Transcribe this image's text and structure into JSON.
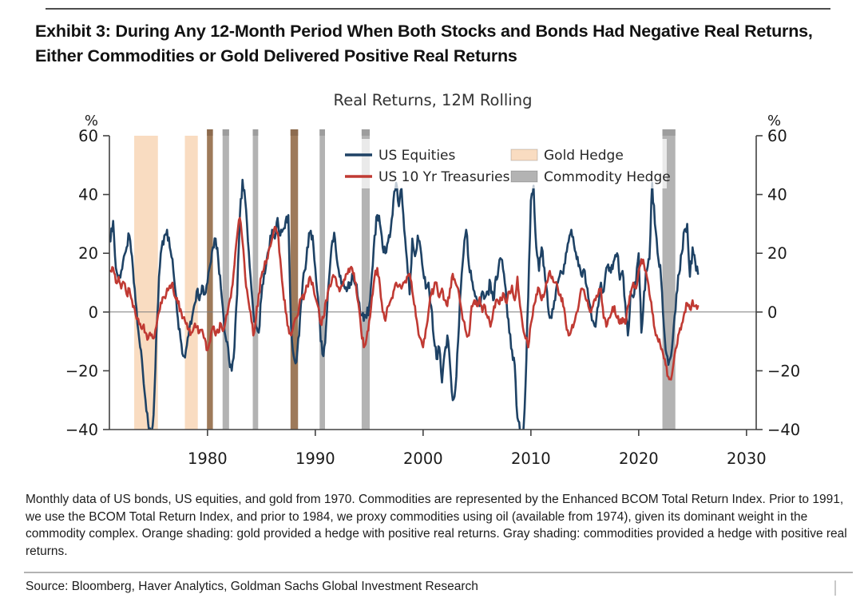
{
  "page": {
    "exhibit_title": "Exhibit 3: During Any 12-Month Period When Both Stocks and Bonds Had Negative Real Returns, Either Commodities or Gold Delivered Positive Real Returns",
    "footnote": "Monthly data of US bonds, US equities, and gold from 1970. Commodities are represented by the Enhanced BCOM Total Return Index. Prior to 1991, we use the BCOM Total Return Index, and prior to 1984, we proxy commodities using oil (available from 1974), given its dominant weight in the commodity complex. Orange shading: gold provided a hedge with positive real returns. Gray shading: commodities provided a hedge with positive real returns.",
    "source": "Source: Bloomberg, Haver Analytics, Goldman Sachs Global Investment Research"
  },
  "chart_data": {
    "type": "line",
    "title": "Real Returns, 12M Rolling",
    "y_axis": {
      "label": "%",
      "ticks": [
        60,
        40,
        20,
        0,
        -20,
        -40
      ],
      "range": [
        -40,
        60
      ],
      "mirrored_right": true,
      "grid": false,
      "zero_line": true
    },
    "x_axis": {
      "ticks": [
        1980,
        1990,
        2000,
        2010,
        2020,
        2030
      ],
      "range": [
        1970.9,
        2030.9
      ]
    },
    "legend": {
      "position": "upper center, two columns, inside plot",
      "items": [
        {
          "label": "US Equities",
          "swatch": "line",
          "color": "#1e4265"
        },
        {
          "label": "US 10 Yr Treasuries",
          "swatch": "line",
          "color": "#c03a33"
        },
        {
          "label": "Gold Hedge",
          "swatch": "patch",
          "color": "#f9dcc1"
        },
        {
          "label": "Commodity Hedge",
          "swatch": "patch",
          "color": "#b3b3b3"
        }
      ]
    },
    "bands": [
      {
        "name": "Gold Hedge",
        "color": "#f9dcc1",
        "cap_color": null,
        "ranges": [
          [
            1973.2,
            1975.4
          ],
          [
            1977.9,
            1979.1
          ]
        ]
      },
      {
        "name": "Gold + Commodity Hedge (overlap)",
        "color": "#9e7a5a",
        "cap_color": "#8d6b4e",
        "ranges": [
          [
            1979.95,
            1980.5
          ],
          [
            1987.7,
            1988.4
          ]
        ]
      },
      {
        "name": "Commodity Hedge",
        "color": "#b3b3b3",
        "cap_color": "#9d9d9d",
        "ranges": [
          [
            1981.4,
            1982.0
          ],
          [
            1984.2,
            1984.7
          ],
          [
            1990.4,
            1990.9
          ],
          [
            1994.3,
            1995.05
          ],
          [
            2022.2,
            2023.4
          ]
        ]
      }
    ],
    "series": [
      {
        "name": "US Equities",
        "color": "#1e4265",
        "x_start": 1971.0,
        "x_step": 0.25,
        "values": [
          24,
          31,
          15,
          11,
          14,
          19,
          22,
          26,
          19,
          8,
          -4,
          -12,
          -20,
          -30,
          -38,
          -43,
          -35,
          -8,
          12,
          22,
          26,
          28,
          22,
          18,
          8,
          -2,
          -9,
          -15,
          -13,
          -8,
          -4,
          2,
          7,
          4,
          9,
          6,
          10,
          16,
          22,
          25,
          18,
          8,
          -2,
          -10,
          -16,
          -20,
          -12,
          6,
          32,
          45,
          38,
          24,
          12,
          0,
          -5,
          -7,
          5,
          13,
          18,
          22,
          28,
          25,
          32,
          26,
          28,
          31,
          33,
          -5,
          -15,
          -17,
          -8,
          5,
          14,
          22,
          27,
          26,
          15,
          5,
          -10,
          -15,
          -5,
          10,
          22,
          27,
          18,
          12,
          9,
          8,
          8,
          10,
          13,
          9,
          4,
          -1,
          -3,
          -2,
          2,
          13,
          26,
          33,
          30,
          22,
          20,
          24,
          28,
          38,
          44,
          36,
          42,
          28,
          18,
          6,
          25,
          19,
          26,
          22,
          14,
          8,
          10,
          2,
          -9,
          -16,
          -12,
          -24,
          -14,
          -8,
          -18,
          -30,
          -26,
          -10,
          8,
          20,
          28,
          16,
          11,
          7,
          4,
          2,
          7,
          5,
          7,
          10,
          4,
          12,
          15,
          18,
          13,
          3,
          -7,
          -13,
          -18,
          -36,
          -41,
          -43,
          -25,
          5,
          38,
          43,
          22,
          14,
          22,
          15,
          7,
          -2,
          1,
          4,
          10,
          14,
          13,
          20,
          24,
          28,
          23,
          18,
          16,
          12,
          14,
          8,
          2,
          -3,
          -5,
          2,
          10,
          7,
          15,
          14,
          16,
          18,
          20,
          11,
          14,
          3,
          -8,
          7,
          5,
          10,
          20,
          -7,
          7,
          14,
          18,
          44,
          30,
          20,
          16,
          0,
          -13,
          -18,
          -15,
          -5,
          6,
          13,
          20,
          28,
          30,
          12,
          22,
          17,
          13
        ]
      },
      {
        "name": "US 10 Yr Treasuries",
        "color": "#c03a33",
        "x_start": 1971.0,
        "x_step": 0.25,
        "values": [
          14,
          15,
          10,
          12,
          8,
          10,
          6,
          8,
          4,
          1,
          -2,
          -4,
          -5,
          -7,
          -9,
          -8,
          -9,
          -5,
          0,
          3,
          5,
          8,
          9,
          10,
          5,
          3,
          1,
          -2,
          -4,
          -6,
          -7,
          -5,
          -5,
          -7,
          -6,
          -9,
          -13,
          -10,
          -5,
          -8,
          -7,
          -4,
          -6,
          -1,
          3,
          8,
          16,
          26,
          32,
          24,
          12,
          5,
          0,
          -8,
          -2,
          6,
          12,
          15,
          18,
          22,
          25,
          29,
          27,
          18,
          8,
          0,
          -5,
          -8,
          -4,
          -2,
          2,
          5,
          6,
          9,
          12,
          10,
          5,
          2,
          -4,
          -2,
          4,
          8,
          10,
          12,
          9,
          7,
          9,
          11,
          13,
          15,
          13,
          10,
          3,
          -6,
          -12,
          -9,
          -3,
          5,
          12,
          15,
          9,
          0,
          -3,
          2,
          4,
          7,
          10,
          9,
          8,
          10,
          12,
          13,
          7,
          2,
          -5,
          -9,
          -12,
          -6,
          0,
          6,
          8,
          10,
          5,
          8,
          4,
          2,
          8,
          13,
          10,
          8,
          2,
          -3,
          -7,
          -8,
          2,
          4,
          2,
          5,
          0,
          2,
          -2,
          -5,
          0,
          4,
          3,
          4,
          6,
          3,
          7,
          9,
          4,
          12,
          2,
          -5,
          -9,
          -12,
          -4,
          2,
          6,
          8,
          4,
          6,
          10,
          14,
          12,
          10,
          8,
          6,
          2,
          -4,
          -8,
          -6,
          -4,
          0,
          4,
          8,
          6,
          4,
          0,
          2,
          4,
          6,
          8,
          -2,
          -5,
          -2,
          0,
          2,
          -2,
          -4,
          -2,
          -4,
          2,
          6,
          10,
          8,
          14,
          18,
          16,
          12,
          6,
          0,
          -6,
          -9,
          -11,
          -14,
          -18,
          -22,
          -23,
          -17,
          -12,
          -7,
          -4,
          0,
          3,
          1,
          4,
          2,
          2
        ]
      }
    ]
  }
}
